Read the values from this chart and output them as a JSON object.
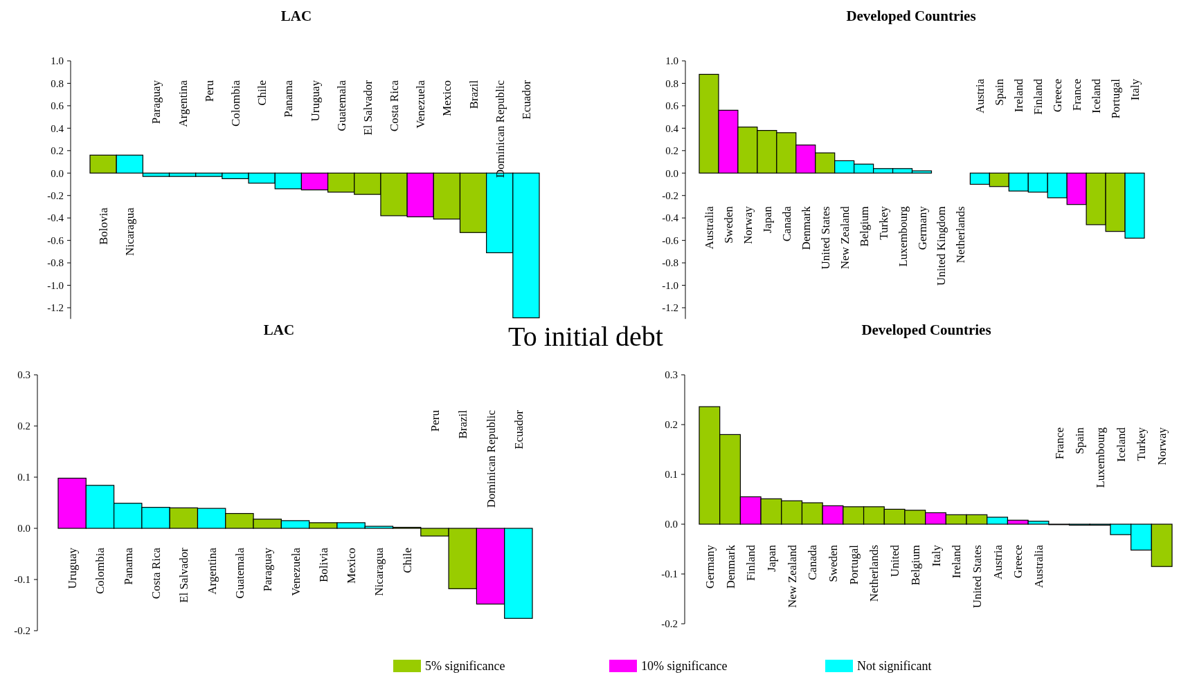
{
  "chart_data": [
    {
      "type": "bar",
      "title": "LAC",
      "categories": [
        "Bolovia",
        "Nicaragua",
        "Paraguay",
        "Argentina",
        "Peru",
        "Colombia",
        "Chile",
        "Panama",
        "Uruguay",
        "Guatemala",
        "El Salvador",
        "Costa Rica",
        "Venezuela",
        "Mexico",
        "Brazil",
        "Dominican Republic",
        "Ecuador"
      ],
      "series": [
        {
          "color": "#99cc00",
          "values": [
            0.16,
            null,
            null,
            null,
            null,
            null,
            null,
            null,
            null,
            -0.17,
            -0.19,
            -0.38,
            null,
            -0.41,
            -0.53,
            null,
            null
          ]
        },
        {
          "color": "#ff00ff",
          "values": [
            null,
            null,
            null,
            null,
            null,
            null,
            null,
            null,
            -0.15,
            null,
            null,
            null,
            -0.39,
            null,
            null,
            null,
            null
          ]
        },
        {
          "color": "#00ffff",
          "values": [
            null,
            0.16,
            -0.03,
            -0.03,
            -0.03,
            -0.05,
            -0.09,
            -0.14,
            null,
            null,
            null,
            null,
            null,
            null,
            null,
            -0.71,
            -1.29
          ]
        }
      ],
      "ylim": [
        -1.3,
        1.0
      ],
      "yticks": [
        {
          "value": 1.0,
          "label": "1.0"
        },
        0.8,
        0.6,
        0.4,
        0.2,
        {
          "value": 0,
          "label": "0.0"
        },
        -0.2,
        -0.4,
        -0.6,
        -0.8,
        {
          "value": -1.0,
          "label": "-1.0"
        },
        -1.2
      ],
      "grid": false,
      "legend": false
    },
    {
      "type": "bar",
      "title": "Developed Countries",
      "categories": [
        "Australia",
        "Sweden",
        "Norway",
        "Japan",
        "Canada",
        "Denmark",
        "United States",
        "New Zealand",
        "Belgium",
        "Turkey",
        "Luxembourg",
        "Germany",
        "United Kingdom",
        "Netherlands",
        "Austria",
        "Spain",
        "Ireland",
        "Finland",
        "Greece",
        "France",
        "Iceland",
        "Portugal",
        "Italy"
      ],
      "series": [
        {
          "color": "#99cc00",
          "values": [
            0.88,
            null,
            0.41,
            0.38,
            0.36,
            null,
            0.18,
            null,
            null,
            null,
            null,
            null,
            null,
            null,
            null,
            -0.12,
            null,
            null,
            null,
            null,
            -0.46,
            -0.52,
            null
          ]
        },
        {
          "color": "#ff00ff",
          "values": [
            null,
            0.56,
            null,
            null,
            null,
            0.25,
            null,
            null,
            null,
            null,
            null,
            null,
            null,
            null,
            null,
            null,
            null,
            null,
            null,
            -0.28,
            null,
            null,
            null
          ]
        },
        {
          "color": "#00ffff",
          "values": [
            null,
            null,
            null,
            null,
            null,
            null,
            null,
            0.11,
            0.08,
            0.04,
            0.04,
            0.02,
            null,
            null,
            -0.1,
            null,
            -0.16,
            -0.17,
            -0.22,
            null,
            null,
            null,
            -0.58
          ]
        }
      ],
      "ylim": [
        -1.3,
        1.0
      ],
      "yticks": [
        {
          "value": 1.0,
          "label": "1.0"
        },
        0.8,
        0.6,
        0.4,
        0.2,
        {
          "value": 0,
          "label": "0.0"
        },
        -0.2,
        -0.4,
        -0.6,
        -0.8,
        {
          "value": -1.0,
          "label": "-1.0"
        },
        -1.2
      ],
      "grid": false,
      "legend": false
    },
    {
      "type": "bar",
      "title": "LAC",
      "annotations": [
        "To initial debt"
      ],
      "categories": [
        "Uruguay",
        "Colombia",
        "Panama",
        "Costa Rica",
        "El Salvador",
        "Argentina",
        "Guatemala",
        "Paraguay",
        "Venezuela",
        "Bolivia",
        "Mexico",
        "Nicaragua",
        "Chile",
        "Peru",
        "Brazil",
        "Dominican Republic",
        "Ecuador"
      ],
      "series": [
        {
          "color": "#99cc00",
          "values": [
            null,
            null,
            null,
            null,
            0.04,
            null,
            0.029,
            0.018,
            null,
            0.011,
            null,
            null,
            0.002,
            -0.015,
            -0.118,
            null,
            null
          ]
        },
        {
          "color": "#ff00ff",
          "values": [
            0.098,
            null,
            null,
            null,
            null,
            null,
            null,
            null,
            null,
            null,
            null,
            null,
            null,
            null,
            null,
            -0.148,
            null
          ]
        },
        {
          "color": "#00ffff",
          "values": [
            null,
            0.084,
            0.049,
            0.041,
            null,
            0.039,
            null,
            null,
            0.015,
            null,
            0.011,
            0.004,
            null,
            null,
            null,
            null,
            -0.176
          ]
        }
      ],
      "ylim": [
        -0.2,
        0.3
      ],
      "yticks": [
        0.3,
        0.2,
        0.1,
        {
          "value": 0,
          "label": "0.0"
        },
        -0.1,
        -0.2
      ],
      "grid": false,
      "legend": false
    },
    {
      "type": "bar",
      "title": "Developed Countries",
      "categories": [
        "Germany",
        "Denmark",
        "Finland",
        "Japan",
        "New Zealand",
        "Canada",
        "Sweden",
        "Portugal",
        "Netherlands",
        "United",
        "Belgium",
        "Italy",
        "Ireland",
        "United States",
        "Austria",
        "Greece",
        "Australia",
        "France",
        "Spain",
        "Luxembourg",
        "Iceland",
        "Turkey",
        "Norway"
      ],
      "series": [
        {
          "name": "5% significance",
          "color": "#99cc00",
          "values": [
            0.236,
            0.18,
            null,
            0.051,
            0.047,
            0.043,
            null,
            0.035,
            0.035,
            0.03,
            0.028,
            null,
            0.019,
            0.019,
            null,
            null,
            null,
            -0.001,
            null,
            null,
            null,
            null,
            -0.085
          ]
        },
        {
          "name": "10% significance",
          "color": "#ff00ff",
          "values": [
            null,
            null,
            0.055,
            null,
            null,
            null,
            0.037,
            null,
            null,
            null,
            null,
            0.023,
            null,
            null,
            null,
            0.008,
            null,
            null,
            null,
            null,
            null,
            null,
            null
          ]
        },
        {
          "name": "Not significant",
          "color": "#00ffff",
          "values": [
            null,
            null,
            null,
            null,
            null,
            null,
            null,
            null,
            null,
            null,
            null,
            null,
            null,
            null,
            0.014,
            null,
            0.006,
            null,
            -0.002,
            -0.002,
            -0.021,
            -0.052,
            null
          ]
        }
      ],
      "ylim": [
        -0.2,
        0.3
      ],
      "yticks": [
        0.3,
        0.2,
        0.1,
        {
          "value": 0,
          "label": "0.0"
        },
        -0.1,
        -0.2
      ],
      "grid": false,
      "legend": "bottom"
    }
  ]
}
